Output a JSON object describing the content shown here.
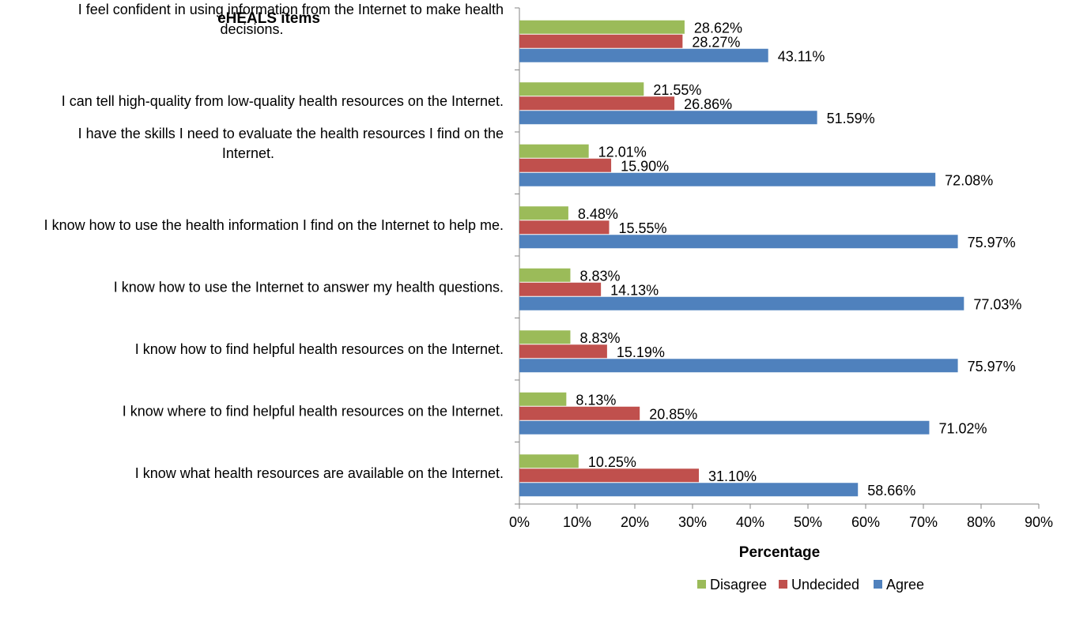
{
  "chart_data": {
    "type": "bar",
    "orientation": "horizontal",
    "title": "",
    "ylabel": "eHEALS items",
    "xlabel": "Percentage",
    "xlim": [
      0,
      90
    ],
    "x_ticks": [
      "0%",
      "10%",
      "20%",
      "30%",
      "40%",
      "50%",
      "60%",
      "70%",
      "80%",
      "90%"
    ],
    "grid": false,
    "legend_position": "bottom",
    "categories": [
      [
        "I feel confident in using information from the Internet to make health",
        "decisions."
      ],
      [
        "I can tell high-quality from low-quality health resources on the Internet."
      ],
      [
        "I have the skills I need to evaluate the health resources I find on the",
        "Internet."
      ],
      [
        "I know how to use the health information I find on the Internet to help me."
      ],
      [
        "I know how to use the Internet to answer my health questions."
      ],
      [
        "I know how to find helpful health resources on the Internet."
      ],
      [
        "I know where to find helpful health resources on the Internet."
      ],
      [
        "I know what health resources are available on the Internet."
      ]
    ],
    "series": [
      {
        "name": "Disagree",
        "color": "#9BBB59",
        "values": [
          28.62,
          21.55,
          12.01,
          8.48,
          8.83,
          8.83,
          8.13,
          10.25
        ],
        "labels": [
          "28.62%",
          "21.55%",
          "12.01%",
          "8.48%",
          "8.83%",
          "8.83%",
          "8.13%",
          "10.25%"
        ]
      },
      {
        "name": "Undecided",
        "color": "#C0504D",
        "values": [
          28.27,
          26.86,
          15.9,
          15.55,
          14.13,
          15.19,
          20.85,
          31.1
        ],
        "labels": [
          "28.27%",
          "26.86%",
          "15.90%",
          "15.55%",
          "14.13%",
          "15.19%",
          "20.85%",
          "31.10%"
        ]
      },
      {
        "name": "Agree",
        "color": "#4F81BD",
        "values": [
          43.11,
          51.59,
          72.08,
          75.97,
          77.03,
          75.97,
          71.02,
          58.66
        ],
        "labels": [
          "43.11%",
          "51.59%",
          "72.08%",
          "75.97%",
          "77.03%",
          "75.97%",
          "71.02%",
          "58.66%"
        ]
      }
    ]
  }
}
